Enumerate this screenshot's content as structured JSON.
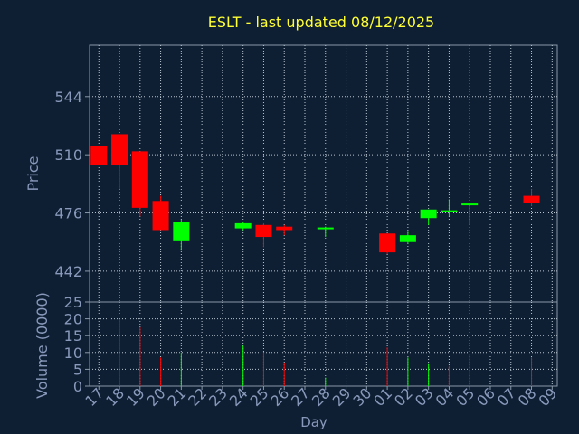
{
  "chart_data": [
    {
      "type": "candlestick",
      "title": "ESLT - last updated 08/12/2025",
      "ylabel": "Price",
      "ylim": [
        424,
        574
      ],
      "yticks": [
        442,
        476,
        510,
        544
      ],
      "x_categories": [
        "17",
        "18",
        "19",
        "20",
        "21",
        "22",
        "23",
        "24",
        "25",
        "26",
        "27",
        "28",
        "29",
        "30",
        "01",
        "02",
        "03",
        "04",
        "05",
        "06",
        "07",
        "08",
        "09"
      ],
      "xlabel": "Day",
      "grid": true,
      "colors": {
        "up": "#00ff00",
        "down": "#ff0000"
      },
      "candles": [
        {
          "day": "17",
          "open": 515,
          "high": 515,
          "low": 504,
          "close": 504
        },
        {
          "day": "18",
          "open": 522,
          "high": 522,
          "low": 490,
          "close": 504
        },
        {
          "day": "19",
          "open": 512,
          "high": 512,
          "low": 474,
          "close": 479
        },
        {
          "day": "20",
          "open": 483,
          "high": 486,
          "low": 467,
          "close": 466
        },
        {
          "day": "21",
          "open": 460,
          "high": 472,
          "low": 454,
          "close": 471
        },
        {
          "day": "24",
          "open": 467,
          "high": 471,
          "low": 466,
          "close": 470
        },
        {
          "day": "25",
          "open": 469,
          "high": 470,
          "low": 456,
          "close": 462
        },
        {
          "day": "26",
          "open": 468,
          "high": 469,
          "low": 463,
          "close": 466
        },
        {
          "day": "28",
          "open": 466,
          "high": 468,
          "low": 462,
          "close": 467
        },
        {
          "day": "01",
          "open": 464,
          "high": 464,
          "low": 452,
          "close": 453
        },
        {
          "day": "02",
          "open": 459,
          "high": 465,
          "low": 458,
          "close": 463
        },
        {
          "day": "03",
          "open": 473,
          "high": 478,
          "low": 469,
          "close": 478
        },
        {
          "day": "04",
          "open": 477,
          "high": 484,
          "low": 474,
          "close": 477
        },
        {
          "day": "05",
          "open": 481,
          "high": 482,
          "low": 469,
          "close": 481
        },
        {
          "day": "08",
          "open": 486,
          "high": 490,
          "low": 480,
          "close": 482
        }
      ]
    },
    {
      "type": "bar",
      "ylabel": "Volume (0000)",
      "ylim": [
        0,
        25
      ],
      "yticks": [
        0,
        5,
        10,
        15,
        20,
        25
      ],
      "xlabel": "Day",
      "x_categories": [
        "17",
        "18",
        "19",
        "20",
        "21",
        "22",
        "23",
        "24",
        "25",
        "26",
        "27",
        "28",
        "29",
        "30",
        "01",
        "02",
        "03",
        "04",
        "05",
        "06",
        "07",
        "08",
        "09"
      ],
      "bars": [
        {
          "day": "18",
          "value": 20,
          "color": "#ff0000"
        },
        {
          "day": "19",
          "value": 17.5,
          "color": "#ff0000"
        },
        {
          "day": "20",
          "value": 8.5,
          "color": "#ff0000"
        },
        {
          "day": "21",
          "value": 10,
          "color": "#00ff00"
        },
        {
          "day": "24",
          "value": 12,
          "color": "#00ff00"
        },
        {
          "day": "25",
          "value": 10,
          "color": "#ff0000"
        },
        {
          "day": "26",
          "value": 7,
          "color": "#ff0000"
        },
        {
          "day": "28",
          "value": 2.5,
          "color": "#00ff00"
        },
        {
          "day": "01",
          "value": 11.5,
          "color": "#ff0000"
        },
        {
          "day": "02",
          "value": 8.5,
          "color": "#00ff00"
        },
        {
          "day": "03",
          "value": 6.5,
          "color": "#00ff00"
        },
        {
          "day": "04",
          "value": 6,
          "color": "#ff0000"
        },
        {
          "day": "05",
          "value": 9.5,
          "color": "#ff0000"
        },
        {
          "day": "08",
          "value": 8.5,
          "color": "#ff0000"
        }
      ]
    }
  ]
}
